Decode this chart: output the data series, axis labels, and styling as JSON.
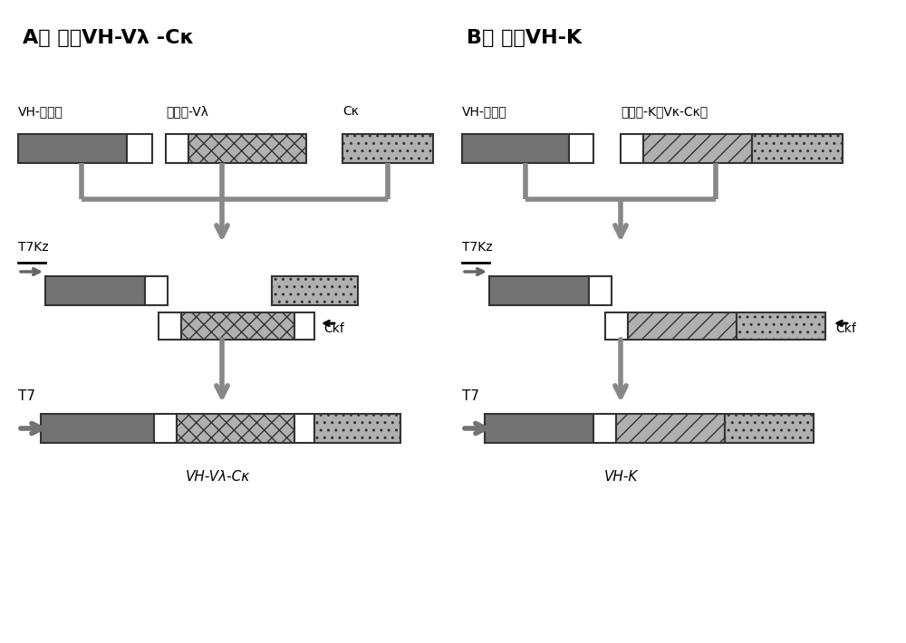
{
  "bg_color": "#ffffff",
  "dark_gray": "#737373",
  "light_gray": "#b0b0b0",
  "hatch_color": "#888888",
  "conn_color": "#888888",
  "title_A": "A） 构建VH-Vλ -Cκ",
  "title_B": "B） 构建VH-K",
  "label_VH_linker": "VH-连接肽",
  "label_linker_Vl": "连接肽-Vλ",
  "label_Ck": "Cκ",
  "label_linker_K": "连接肽-K（Vκ-Cκ）",
  "label_T7Kz": "T7Kz",
  "label_Ckf": "Ckf",
  "label_T7": "T7",
  "label_bottom_A": "VH-Vλ-Cκ",
  "label_bottom_B": "VH-K",
  "figw": 10.0,
  "figh": 7.1,
  "dpi": 100
}
